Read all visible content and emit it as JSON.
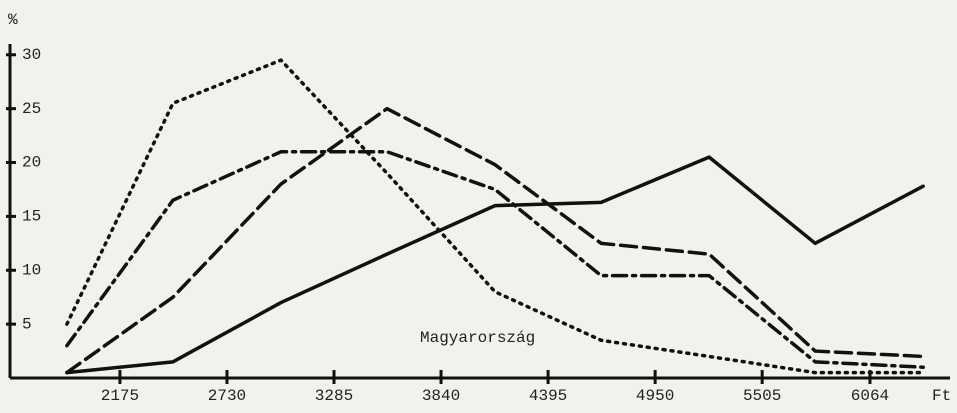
{
  "chart_data": {
    "type": "line",
    "ylabel": "%",
    "xlabel": "Ft",
    "annotation": "Magyarország",
    "x": [
      1900,
      2450,
      3010,
      3560,
      4120,
      4670,
      5230,
      5780,
      6340
    ],
    "series": [
      {
        "color": "#111111",
        "dash": "solid",
        "values": [
          0.5,
          1.5,
          7,
          11.5,
          16,
          16.3,
          20.5,
          12.5,
          17.8
        ]
      },
      {
        "color": "#111111",
        "dash": "dashed",
        "values": [
          0.5,
          7.5,
          18,
          25,
          19.8,
          12.5,
          11.5,
          2.5,
          2
        ]
      },
      {
        "color": "#111111",
        "dash": "dashdot",
        "values": [
          3,
          16.5,
          21,
          21,
          17.5,
          9.5,
          9.5,
          1.5,
          1
        ]
      },
      {
        "color": "#111111",
        "dash": "dotted",
        "values": [
          5,
          25.5,
          29.5,
          19,
          8,
          3.5,
          2,
          0.5,
          0.5
        ]
      }
    ],
    "xlim": [
      1605,
      6479
    ],
    "xticks": [
      2175,
      2730,
      3285,
      3840,
      4395,
      4950,
      5505,
      6064
    ],
    "ylim": [
      0,
      31
    ],
    "yticks": [
      5,
      10,
      15,
      20,
      25,
      30
    ]
  }
}
